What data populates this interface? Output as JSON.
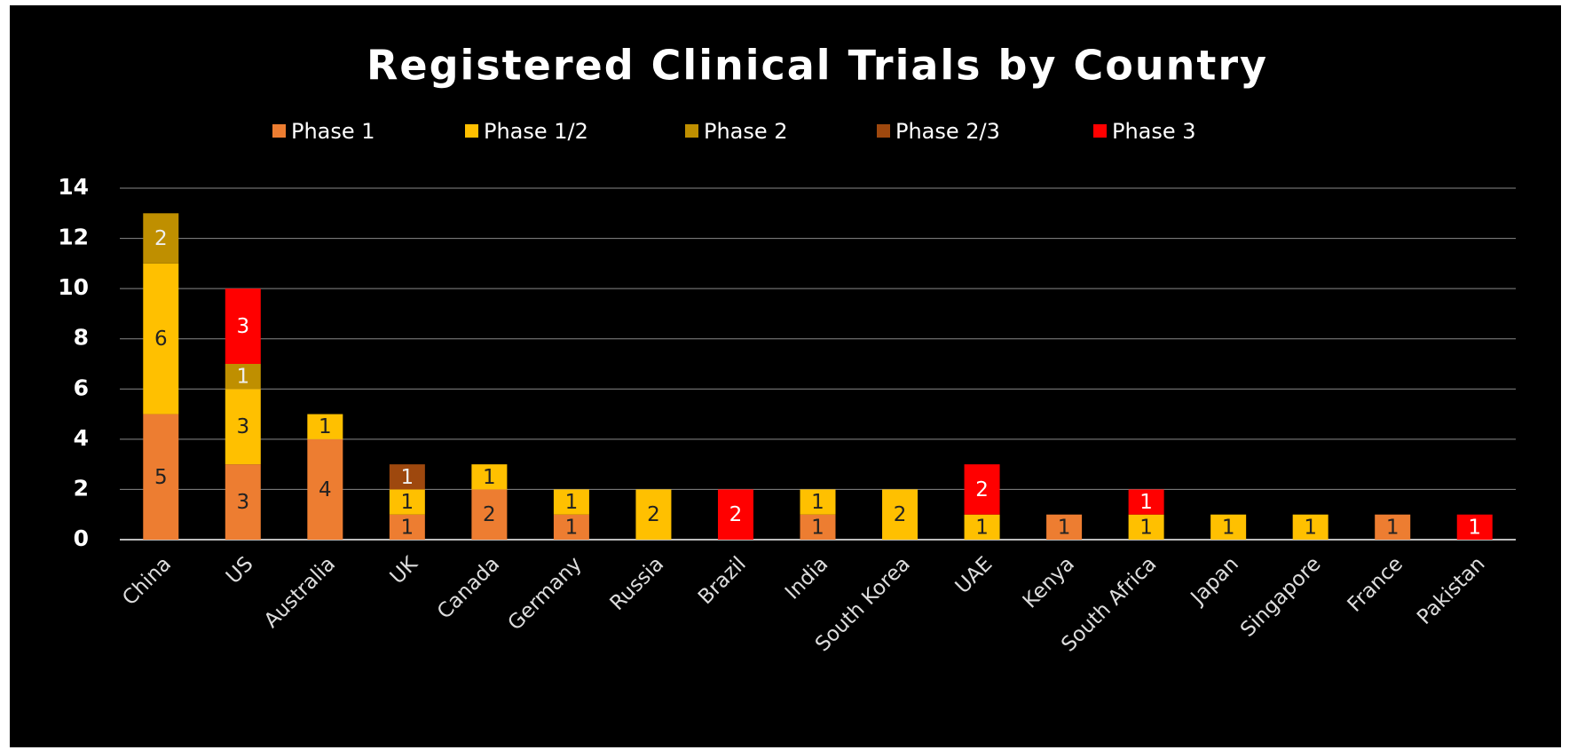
{
  "chart_data": {
    "type": "stacked_bar",
    "title": "Registered Clinical Trials by Country",
    "categories": [
      "China",
      "US",
      "Australia",
      "UK",
      "Canada",
      "Germany",
      "Russia",
      "Brazil",
      "India",
      "South Korea",
      "UAE",
      "Kenya",
      "South Africa",
      "Japan",
      "Singapore",
      "France",
      "Pakistan"
    ],
    "series": [
      {
        "name": "Phase 1",
        "color": "#ed7d31",
        "label_color": "#222222",
        "values": [
          5,
          3,
          4,
          1,
          2,
          1,
          null,
          null,
          1,
          null,
          null,
          1,
          null,
          null,
          null,
          1,
          null
        ]
      },
      {
        "name": "Phase 1/2",
        "color": "#ffc000",
        "label_color": "#222222",
        "values": [
          6,
          3,
          1,
          1,
          1,
          1,
          2,
          null,
          1,
          2,
          1,
          null,
          1,
          1,
          1,
          null,
          null
        ]
      },
      {
        "name": "Phase 2",
        "color": "#bf8f00",
        "label_color": "#eeeeee",
        "values": [
          2,
          1,
          null,
          null,
          null,
          null,
          null,
          null,
          null,
          null,
          null,
          null,
          null,
          null,
          null,
          null,
          null
        ]
      },
      {
        "name": "Phase 2/3",
        "color": "#9e480e",
        "label_color": "#eeeeee",
        "values": [
          null,
          null,
          null,
          1,
          null,
          null,
          null,
          null,
          null,
          null,
          null,
          null,
          null,
          null,
          null,
          null,
          null
        ]
      },
      {
        "name": "Phase 3",
        "color": "#ff0000",
        "label_color": "#ffffff",
        "values": [
          null,
          3,
          null,
          null,
          null,
          null,
          null,
          2,
          null,
          null,
          2,
          null,
          1,
          null,
          null,
          null,
          1
        ]
      }
    ],
    "ylim": [
      0,
      14
    ],
    "yticks": [
      0,
      2,
      4,
      6,
      8,
      10,
      12,
      14
    ],
    "grid": true,
    "legend": "top"
  }
}
